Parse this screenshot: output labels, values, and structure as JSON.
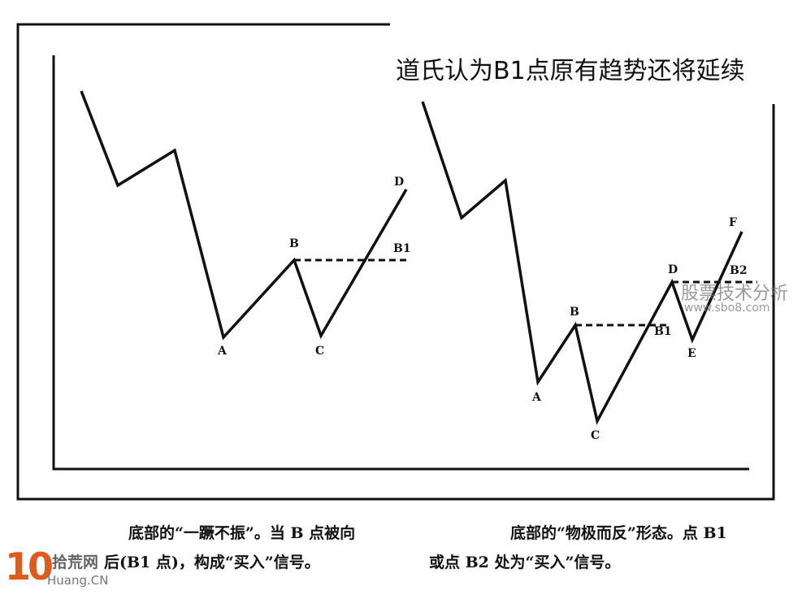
{
  "title": "道氏认为B1点原有趋势还将延续",
  "left_chart": {
    "labels": {
      "A": "A",
      "B": "B",
      "C": "C",
      "D": "D",
      "B1": "B1"
    },
    "caption_line1": "底部的“一蹶不振”。当 B 点被向",
    "caption_line2": "后(B1 点)，构成“买入”信号。"
  },
  "right_chart": {
    "labels": {
      "A": "A",
      "B": "B",
      "C": "C",
      "D": "D",
      "E": "E",
      "F": "F",
      "B1": "B1",
      "B2": "B2"
    },
    "caption_line1": "底部的“物极而反”形态。点 B1",
    "caption_line2": "或点 B2 处为“买入”信号。"
  },
  "watermarks": {
    "site_cn": "股票技术分析",
    "site_url": "www.sbo8.com",
    "logo_num": "10",
    "logo_cn": "拾荒网",
    "logo_url": "Huang.CN",
    "logo_color": "#e05a1c"
  }
}
